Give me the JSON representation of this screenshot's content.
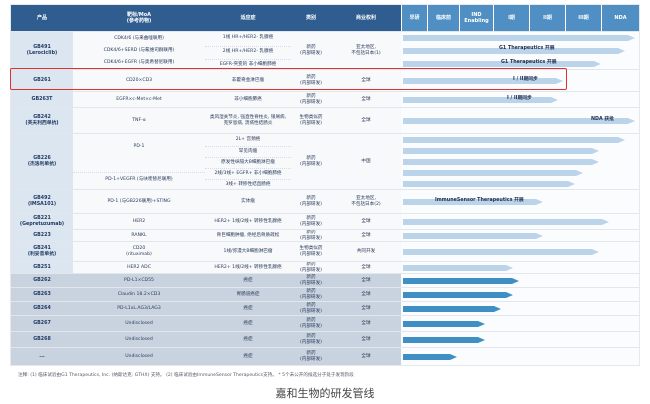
{
  "header": {
    "product": "产品",
    "target": "靶标/MoA\n(参考药物)",
    "indication": "适应症",
    "type": "类别",
    "rights": "商业权利",
    "phases": [
      "早研",
      "临床前",
      "IND\nEnabling",
      "I期",
      "II期",
      "III期",
      "NDA"
    ]
  },
  "rows": [
    {
      "id": "GB491",
      "product": "GB491\n(Lerociclib)",
      "target": "CDK4/6 (与来曲唑联用)\nCDK4/6+SERD (与氟维司群联用)\nCDK4/6+EGFR (与奥希替尼联用)",
      "indications": [
        "1线 HR+/HER2- 乳腺癌",
        "2线 HR+/HER2- 乳腺癌",
        "EGFR-突变的 非小细胞肺癌"
      ],
      "type": "新药\n(内部研发)",
      "rights": "亚太地区,\n不包括日本(1)",
      "bars": [
        "G1 Therapeutics 开展",
        "G1 Therapeutics 开展"
      ]
    },
    {
      "id": "GB261",
      "product": "GB261",
      "target": "CD20×CD3",
      "indication": "非霍奇金淋巴瘤",
      "type": "新药\n(内部研发)",
      "rights": "全球",
      "bar_label": "I / II期同步"
    },
    {
      "id": "GB263T",
      "product": "GB263T",
      "target": "EGFR×c-Met×c-Met",
      "indication": "非小细胞肺癌",
      "type": "新药\n(内部研发)",
      "rights": "全球",
      "bar_label": "I / II期同步"
    },
    {
      "id": "GB242",
      "product": "GB242\n(英夫利西单抗)",
      "target": "TNF-α",
      "indication": "类风湿关节炎, 强直性脊柱炎, 银屑病,\n克罗恩病, 溃疡性结肠炎",
      "type": "生物类似药\n(内部研发)",
      "rights": "全球",
      "bar_label": "NDA 获批"
    },
    {
      "id": "GB226",
      "product": "GB226\n(杰洛利单抗)",
      "target_top": "PD-1",
      "target_bottom": "PD-1+VEGFR (与呋喹替尼联用)",
      "indications": [
        "2L+ 宫颈癌",
        "罕见肉瘤",
        "原发性纵隔大B细胞淋巴瘤",
        "2线/3线+ EGFR+ 非小细胞肺癌",
        "3线+ 转移性结直肠癌"
      ],
      "type": "新药\n(内部研发)",
      "rights": "中国"
    },
    {
      "id": "GB492",
      "product": "GB492\n(IMSA101)",
      "target": "PD-1 (与GB226联用)+STING",
      "indication": "实体瘤",
      "type": "新药\n(内部研发)",
      "rights": "亚太地区,\n不包括日本(2)",
      "bar_label": "ImmuneSensor Therapeutics 开展"
    },
    {
      "id": "GB221",
      "product": "GB221\n(Gepretuzumab)",
      "target": "HER2",
      "indication": "HER2+ 1线/2线+ 转移性乳腺癌",
      "type": "新药\n(内部研发)",
      "rights": "全球"
    },
    {
      "id": "GB223",
      "product": "GB223",
      "target": "RANKL",
      "indication": "骨巨细胞肿瘤, 绝经后骨质疏松",
      "type": "新药\n(内部研发)",
      "rights": "全球"
    },
    {
      "id": "GB241",
      "product": "GB241\n(利妥昔单抗)",
      "target": "CD20\n(rituximab)",
      "indication": "1线/弥漫大B细胞淋巴瘤",
      "type": "生物类似药\n(内部研发)",
      "rights": "共同开发"
    },
    {
      "id": "GB251",
      "product": "GB251",
      "target": "HER2 ADC",
      "indication": "HER2+ 1线/2线+ 转移性乳腺癌",
      "type": "新药\n(内部研发)",
      "rights": "全球"
    },
    {
      "id": "GB262",
      "product": "GB262",
      "target": "PD-L1×CD55",
      "indication": "癌症",
      "type": "新药\n(内部研发)",
      "rights": "全球"
    },
    {
      "id": "GB263",
      "product": "GB263",
      "target": "Claudin 18.2×CD3",
      "indication": "胃肠道癌症",
      "type": "新药\n(内部研发)",
      "rights": "全球"
    },
    {
      "id": "GB264",
      "product": "GB264",
      "target": "PD-L1xL.AG3/LAG3",
      "indication": "癌症",
      "type": "新药\n(内部研发)",
      "rights": "全球"
    },
    {
      "id": "GB267",
      "product": "GB267",
      "target": "Undisclosed",
      "indication": "癌症",
      "type": "新药\n(内部研发)",
      "rights": "全球"
    },
    {
      "id": "GB268",
      "product": "GB268",
      "target": "Undisclosed",
      "indication": "癌症",
      "type": "新药\n(内部研发)",
      "rights": "全球"
    },
    {
      "id": "more",
      "product": "...",
      "target": "Undisclosed",
      "indication": "癌症",
      "type": "新药\n(内部研发)",
      "rights": "全球"
    }
  ],
  "footnote": "注释: (1) 临床试验由G1 Therapeutics, Inc. (纳斯达克: GTHX) 支持。 (2) 临床试验由ImmuneSensor Therapeutics支持。 * 5个未公开的候选分子处于发现阶段",
  "caption": "嘉和生物的研发管线",
  "colors": {
    "header": "#2f5d8f",
    "phase_header": "#4f8fc3",
    "bar": "#3f8fc4",
    "bar_light": "#bcd4ea",
    "highlight": "#e03030"
  }
}
